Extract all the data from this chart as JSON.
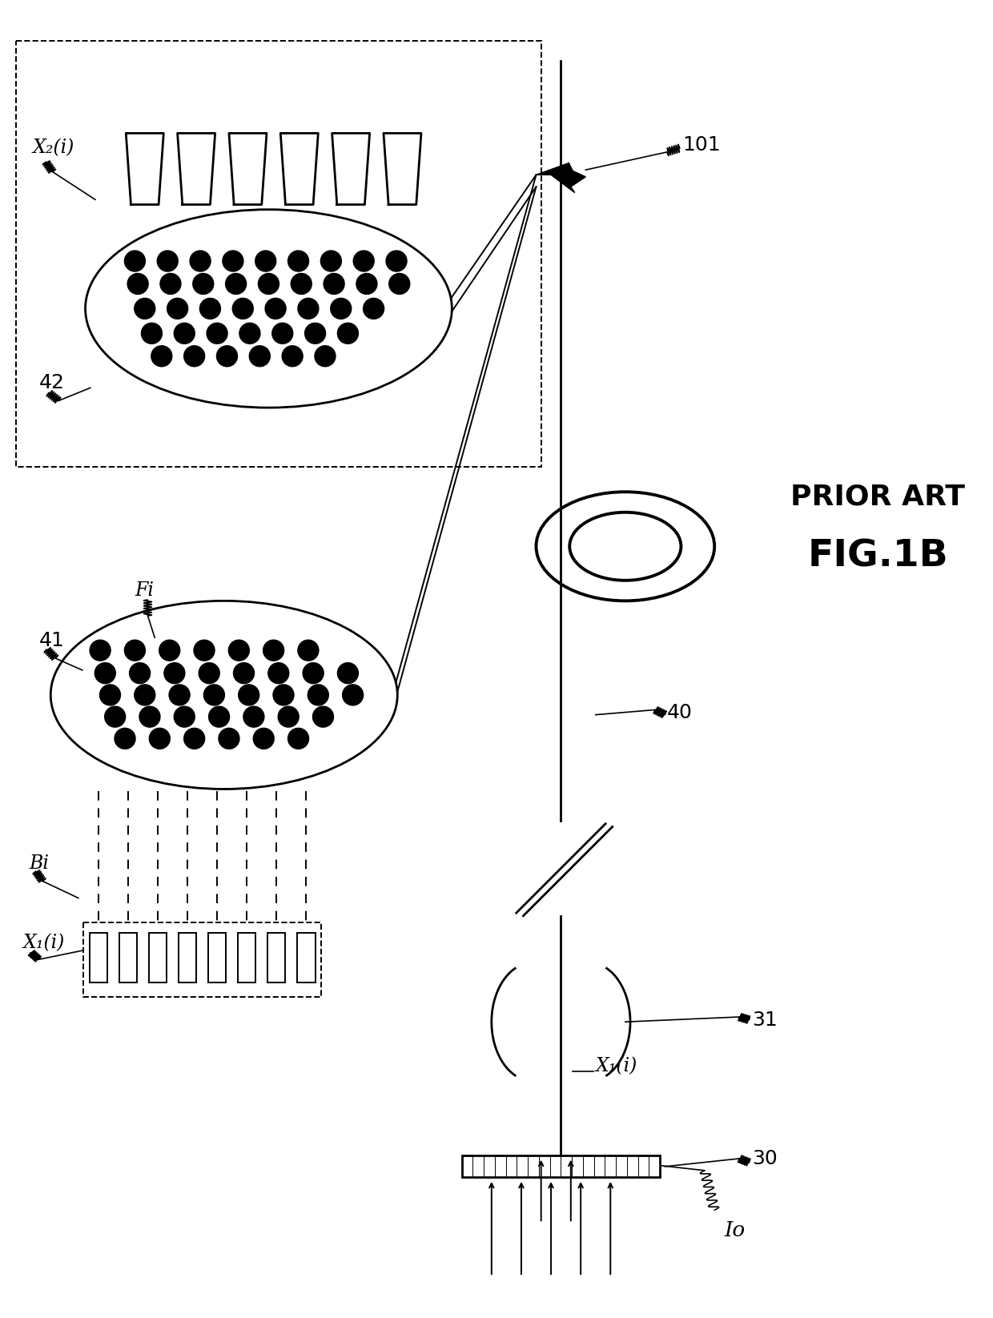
{
  "fig_label": "FIG.1B",
  "fig_sublabel": "PRIOR ART",
  "bg_color": "#ffffff",
  "line_color": "#000000",
  "labels": {
    "X2i": "X₂(i)",
    "X1i_left": "X₁(i)",
    "X1i_right": "X₁(i)",
    "Fi": "Fi",
    "Bi": "Bi",
    "n42": "42",
    "n41": "41",
    "n40": "40",
    "n30": "30",
    "n31": "31",
    "n101": "101",
    "Io": "Io"
  },
  "layout": {
    "fig_w": 12.4,
    "fig_h": 16.46,
    "dpi": 100
  }
}
